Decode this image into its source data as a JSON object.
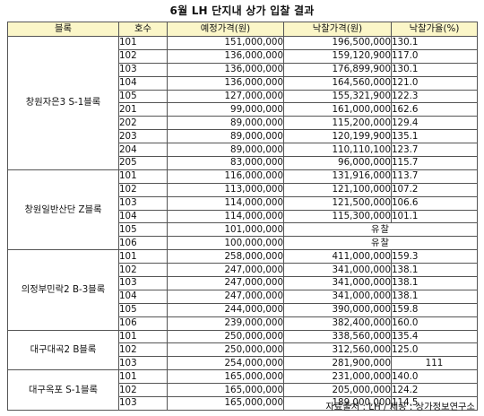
{
  "title": "6월 LH 단지내 상가 입찰 결과",
  "headers": [
    "블록",
    "호수",
    "예정가격(원)",
    "낙찰가격(원)",
    "낙찰가율(%)"
  ],
  "groups": [
    {
      "name": "창원자은3 S-1블록",
      "rows": [
        {
          "unit": "101",
          "planned": "151,000,000",
          "winning": "196,500,000",
          "rate": "130.1"
        },
        {
          "unit": "102",
          "planned": "136,000,000",
          "winning": "159,120,900",
          "rate": "117.0"
        },
        {
          "unit": "103",
          "planned": "136,000,000",
          "winning": "176,899,900",
          "rate": "130.1"
        },
        {
          "unit": "104",
          "planned": "136,000,000",
          "winning": "164,560,000",
          "rate": "121.0"
        },
        {
          "unit": "105",
          "planned": "127,000,000",
          "winning": "155,321,900",
          "rate": "122.3"
        },
        {
          "unit": "201",
          "planned": "99,000,000",
          "winning": "161,000,000",
          "rate": "162.6"
        },
        {
          "unit": "202",
          "planned": "89,000,000",
          "winning": "115,200,000",
          "rate": "129.4"
        },
        {
          "unit": "203",
          "planned": "89,000,000",
          "winning": "120,199,900",
          "rate": "135.1"
        },
        {
          "unit": "204",
          "planned": "89,000,000",
          "winning": "110,110,100",
          "rate": "123.7"
        },
        {
          "unit": "205",
          "planned": "83,000,000",
          "winning": "96,000,000",
          "rate": "115.7"
        }
      ]
    },
    {
      "name": "창원일반산단 Z블록",
      "rows": [
        {
          "unit": "101",
          "planned": "116,000,000",
          "winning": "131,916,000",
          "rate": "113.7"
        },
        {
          "unit": "102",
          "planned": "113,000,000",
          "winning": "121,100,000",
          "rate": "107.2"
        },
        {
          "unit": "103",
          "planned": "114,000,000",
          "winning": "121,500,000",
          "rate": "106.6"
        },
        {
          "unit": "104",
          "planned": "114,000,000",
          "winning": "115,300,000",
          "rate": "101.1"
        },
        {
          "unit": "105",
          "planned": "101,000,000",
          "failed": "유찰"
        },
        {
          "unit": "106",
          "planned": "100,000,000",
          "failed": "유찰"
        }
      ]
    },
    {
      "name": "의정부민락2 B-3블록",
      "rows": [
        {
          "unit": "101",
          "planned": "258,000,000",
          "winning": "411,000,000",
          "rate": "159.3"
        },
        {
          "unit": "102",
          "planned": "247,000,000",
          "winning": "341,000,000",
          "rate": "138.1"
        },
        {
          "unit": "103",
          "planned": "247,000,000",
          "winning": "341,000,000",
          "rate": "138.1"
        },
        {
          "unit": "104",
          "planned": "247,000,000",
          "winning": "341,000,000",
          "rate": "138.1"
        },
        {
          "unit": "105",
          "planned": "244,000,000",
          "winning": "390,000,000",
          "rate": "159.8"
        },
        {
          "unit": "106",
          "planned": "239,000,000",
          "winning": "382,400,000",
          "rate": "160.0"
        }
      ]
    },
    {
      "name": "대구대곡2 B블록",
      "rows": [
        {
          "unit": "101",
          "planned": "250,000,000",
          "winning": "338,560,000",
          "rate": "135.4"
        },
        {
          "unit": "102",
          "planned": "250,000,000",
          "winning": "312,560,000",
          "rate": "125.0"
        },
        {
          "unit": "103",
          "planned": "254,000,000",
          "winning": "281,900,000",
          "rate": "111",
          "rate_center": true
        }
      ]
    },
    {
      "name": "대구옥포 S-1블록",
      "rows": [
        {
          "unit": "101",
          "planned": "165,000,000",
          "winning": "231,000,000",
          "rate": "140.0"
        },
        {
          "unit": "102",
          "planned": "165,000,000",
          "winning": "205,000,000",
          "rate": "124.2"
        },
        {
          "unit": "103",
          "planned": "165,000,000",
          "winning": "189,000,000",
          "rate": "114.5"
        }
      ]
    }
  ],
  "source": "자료출처 : LH / 제공 : 상가정보연구소"
}
